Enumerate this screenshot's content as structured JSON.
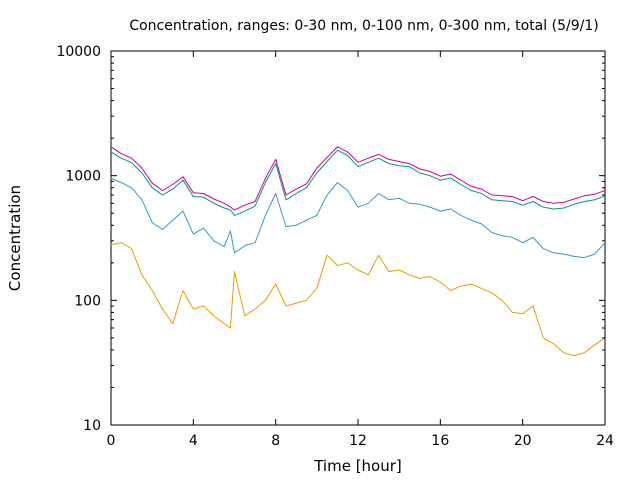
{
  "chart_data": {
    "type": "line",
    "title": "Concentration, ranges: 0-30 nm, 0-100 nm, 0-300 nm, total (5/9/1)",
    "xlabel": "Time [hour]",
    "ylabel": "Concentration",
    "xlim": [
      0,
      24
    ],
    "ylim": [
      10,
      10000
    ],
    "yscale": "log",
    "xticks": [
      0,
      4,
      8,
      12,
      16,
      20,
      24
    ],
    "yticks": [
      10,
      100,
      1000,
      10000
    ],
    "grid": false,
    "legend": "none",
    "x": [
      0,
      0.5,
      1,
      1.5,
      2,
      2.5,
      3,
      3.5,
      4,
      4.5,
      5,
      5.5,
      5.8,
      6,
      6.5,
      7,
      7.5,
      8,
      8.5,
      9,
      9.5,
      10,
      10.5,
      11,
      11.5,
      12,
      12.5,
      13,
      13.5,
      14,
      14.5,
      15,
      15.5,
      16,
      16.5,
      17,
      17.5,
      18,
      18.5,
      19,
      19.5,
      20,
      20.5,
      21,
      21.5,
      22,
      22.5,
      23,
      23.5,
      24
    ],
    "series": [
      {
        "color": "#e8a000",
        "values": [
          280,
          290,
          260,
          160,
          120,
          85,
          65,
          120,
          85,
          90,
          75,
          65,
          60,
          170,
          75,
          85,
          100,
          135,
          90,
          95,
          100,
          125,
          230,
          190,
          200,
          175,
          160,
          230,
          170,
          175,
          160,
          150,
          155,
          140,
          120,
          130,
          135,
          125,
          115,
          100,
          80,
          78,
          90,
          50,
          45,
          38,
          36,
          38,
          44,
          50
        ]
      },
      {
        "color": "#3399cc",
        "values": [
          950,
          880,
          800,
          640,
          420,
          370,
          440,
          520,
          340,
          380,
          300,
          270,
          360,
          240,
          275,
          290,
          480,
          720,
          390,
          400,
          440,
          480,
          700,
          880,
          760,
          560,
          600,
          720,
          640,
          660,
          600,
          590,
          560,
          520,
          540,
          480,
          440,
          410,
          350,
          330,
          320,
          290,
          320,
          260,
          240,
          235,
          225,
          220,
          235,
          290
        ]
      },
      {
        "color": "#009977",
        "values": [
          1550,
          1380,
          1270,
          1050,
          800,
          700,
          780,
          920,
          680,
          670,
          600,
          550,
          530,
          480,
          520,
          570,
          880,
          1250,
          640,
          720,
          800,
          1050,
          1300,
          1600,
          1450,
          1180,
          1280,
          1380,
          1250,
          1200,
          1180,
          1050,
          1000,
          920,
          960,
          850,
          760,
          720,
          640,
          630,
          620,
          580,
          620,
          560,
          540,
          550,
          590,
          620,
          640,
          690
        ]
      },
      {
        "color": "#cc00aa",
        "values": [
          1700,
          1500,
          1380,
          1150,
          870,
          760,
          850,
          980,
          730,
          720,
          650,
          600,
          560,
          530,
          580,
          620,
          950,
          1350,
          700,
          780,
          860,
          1150,
          1400,
          1700,
          1550,
          1280,
          1380,
          1480,
          1350,
          1300,
          1250,
          1130,
          1080,
          990,
          1030,
          920,
          820,
          780,
          700,
          690,
          680,
          630,
          680,
          620,
          600,
          610,
          650,
          690,
          710,
          760
        ]
      }
    ]
  }
}
